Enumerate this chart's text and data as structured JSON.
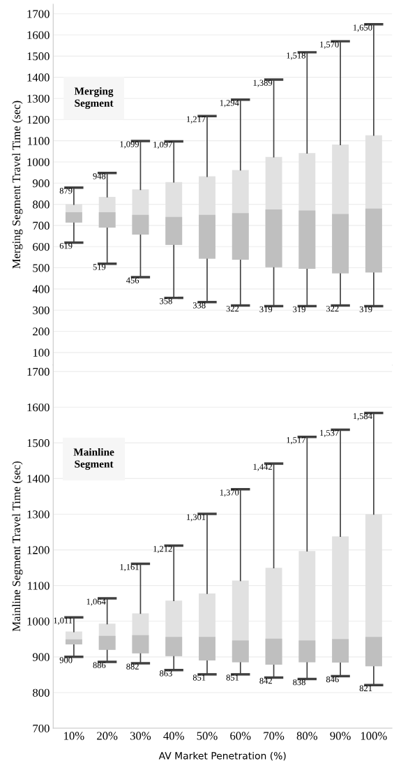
{
  "chart_data": [
    {
      "type": "box",
      "ylabel": "Merging Segment Travel Time (sec)",
      "categories": [
        "10%",
        "20%",
        "30%",
        "40%",
        "50%",
        "60%",
        "70%",
        "80%",
        "90%",
        "100%"
      ],
      "series": [
        {
          "color": "#e1e1e1",
          "boxes": [
            {
              "low": 619,
              "q1": 714,
              "median": 762,
              "q3": 800,
              "high": 879
            },
            {
              "low": 519,
              "q1": 690,
              "median": 762,
              "q3": 835,
              "high": 948
            },
            {
              "low": 456,
              "q1": 657,
              "median": 750,
              "q3": 870,
              "high": 1099
            },
            {
              "low": 358,
              "q1": 608,
              "median": 740,
              "q3": 905,
              "high": 1097
            },
            {
              "low": 338,
              "q1": 543,
              "median": 750,
              "q3": 932,
              "high": 1217
            },
            {
              "low": 322,
              "q1": 538,
              "median": 758,
              "q3": 962,
              "high": 1294
            },
            {
              "low": 319,
              "q1": 503,
              "median": 776,
              "q3": 1024,
              "high": 1389
            },
            {
              "low": 319,
              "q1": 495,
              "median": 771,
              "q3": 1042,
              "high": 1518
            },
            {
              "low": 322,
              "q1": 474,
              "median": 754,
              "q3": 1082,
              "high": 1570
            },
            {
              "low": 319,
              "q1": 478,
              "median": 780,
              "q3": 1126,
              "high": 1650
            }
          ]
        }
      ],
      "ylim": [
        40,
        1745
      ],
      "yticks": [
        100,
        200,
        300,
        400,
        500,
        600,
        700,
        800,
        900,
        1000,
        1100,
        1200,
        1300,
        1400,
        1500,
        1600,
        1700
      ],
      "annotations": [
        "Merging\nSegment",
        {
          "text": "879",
          "x": "10%",
          "y": 879
        },
        {
          "text": "619",
          "x": "10%",
          "y": 619
        },
        {
          "text": "948",
          "x": "20%",
          "y": 948
        },
        {
          "text": "519",
          "x": "20%",
          "y": 519
        },
        {
          "text": "1,099",
          "x": "30%",
          "y": 1099
        },
        {
          "text": "456",
          "x": "30%",
          "y": 456
        },
        {
          "text": "1,097",
          "x": "40%",
          "y": 1097
        },
        {
          "text": "358",
          "x": "40%",
          "y": 358
        },
        {
          "text": "1,217",
          "x": "50%",
          "y": 1217
        },
        {
          "text": "338",
          "x": "50%",
          "y": 338
        },
        {
          "text": "1,294",
          "x": "60%",
          "y": 1294
        },
        {
          "text": "322",
          "x": "60%",
          "y": 322
        },
        {
          "text": "1,389",
          "x": "70%",
          "y": 1389
        },
        {
          "text": "319",
          "x": "70%",
          "y": 319
        },
        {
          "text": "1,518",
          "x": "80%",
          "y": 1518
        },
        {
          "text": "319",
          "x": "80%",
          "y": 319
        },
        {
          "text": "1,570",
          "x": "90%",
          "y": 1570
        },
        {
          "text": "322",
          "x": "90%",
          "y": 322
        },
        {
          "text": "1,650",
          "x": "100%",
          "y": 1650
        },
        {
          "text": "319",
          "x": "100%",
          "y": 319
        }
      ],
      "grid": "y",
      "tick_labels": "y"
    },
    {
      "type": "box",
      "ylabel": "Mainline Segment Travel Time (sec)",
      "xlabel": "AV Market Penetration (%)",
      "categories": [
        "10%",
        "20%",
        "30%",
        "40%",
        "50%",
        "60%",
        "70%",
        "80%",
        "90%",
        "100%"
      ],
      "series": [
        {
          "color": "#e1e1e1",
          "boxes": [
            {
              "low": 900,
              "q1": 935,
              "median": 949,
              "q3": 971,
              "high": 1011
            },
            {
              "low": 886,
              "q1": 920,
              "median": 959,
              "q3": 993,
              "high": 1064
            },
            {
              "low": 882,
              "q1": 910,
              "median": 961,
              "q3": 1022,
              "high": 1161
            },
            {
              "low": 863,
              "q1": 902,
              "median": 956,
              "q3": 1058,
              "high": 1212
            },
            {
              "low": 851,
              "q1": 890,
              "median": 956,
              "q3": 1078,
              "high": 1301
            },
            {
              "low": 851,
              "q1": 885,
              "median": 946,
              "q3": 1114,
              "high": 1370
            },
            {
              "low": 842,
              "q1": 878,
              "median": 951,
              "q3": 1150,
              "high": 1442
            },
            {
              "low": 838,
              "q1": 885,
              "median": 946,
              "q3": 1197,
              "high": 1517
            },
            {
              "low": 846,
              "q1": 884,
              "median": 950,
              "q3": 1238,
              "high": 1537
            },
            {
              "low": 821,
              "q1": 874,
              "median": 956,
              "q3": 1300,
              "high": 1584
            }
          ]
        }
      ],
      "ylim": [
        700,
        1720
      ],
      "yticks": [
        700,
        800,
        900,
        1000,
        1100,
        1200,
        1300,
        1400,
        1500,
        1600,
        1700
      ],
      "annotations": [
        "Mainline\nSegment",
        {
          "text": "1,011",
          "x": "10%",
          "y": 1011
        },
        {
          "text": "900",
          "x": "10%",
          "y": 900
        },
        {
          "text": "1,064",
          "x": "20%",
          "y": 1064
        },
        {
          "text": "886",
          "x": "20%",
          "y": 886
        },
        {
          "text": "1,161",
          "x": "30%",
          "y": 1161
        },
        {
          "text": "882",
          "x": "30%",
          "y": 882
        },
        {
          "text": "1,212",
          "x": "40%",
          "y": 1212
        },
        {
          "text": "863",
          "x": "40%",
          "y": 863
        },
        {
          "text": "1,301",
          "x": "50%",
          "y": 1301
        },
        {
          "text": "851",
          "x": "50%",
          "y": 851
        },
        {
          "text": "1,370",
          "x": "60%",
          "y": 1370
        },
        {
          "text": "851",
          "x": "60%",
          "y": 851
        },
        {
          "text": "1,442",
          "x": "70%",
          "y": 1442
        },
        {
          "text": "842",
          "x": "70%",
          "y": 842
        },
        {
          "text": "1,517",
          "x": "80%",
          "y": 1517
        },
        {
          "text": "838",
          "x": "80%",
          "y": 838
        },
        {
          "text": "1,537",
          "x": "90%",
          "y": 1537
        },
        {
          "text": "846",
          "x": "90%",
          "y": 846
        },
        {
          "text": "1,584",
          "x": "100%",
          "y": 1584
        },
        {
          "text": "821",
          "x": "100%",
          "y": 821
        }
      ],
      "grid": "y"
    }
  ]
}
